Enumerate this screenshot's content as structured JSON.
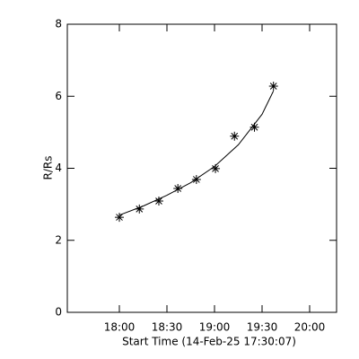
{
  "chart_data": {
    "type": "scatter",
    "x_label": "Start Time (14-Feb-25 17:30:07)",
    "y_label": "R/Rs",
    "x": [
      18.0,
      18.21,
      18.415,
      18.615,
      18.81,
      19.01,
      19.21,
      19.42,
      19.62
    ],
    "values": [
      2.64,
      2.87,
      3.09,
      3.44,
      3.69,
      3.99,
      4.89,
      5.14,
      6.28
    ],
    "color": "#000000",
    "fit_x": [
      18.0,
      18.25,
      18.5,
      18.75,
      19.0,
      19.25,
      19.5,
      19.62
    ],
    "fit_values": [
      2.7,
      2.95,
      3.25,
      3.6,
      4.05,
      4.65,
      5.5,
      6.15
    ],
    "xlim": [
      17.453,
      20.283
    ],
    "xticks": [
      {
        "value": 18,
        "label": "18:00"
      },
      {
        "value": 18.5,
        "label": "18:30"
      },
      {
        "value": 19,
        "label": "19:00"
      },
      {
        "value": 19.5,
        "label": "19:30"
      },
      {
        "value": 20,
        "label": "20:00"
      }
    ],
    "ylim": [
      0,
      8
    ],
    "yticks": [
      0,
      2,
      4,
      6,
      8
    ]
  }
}
